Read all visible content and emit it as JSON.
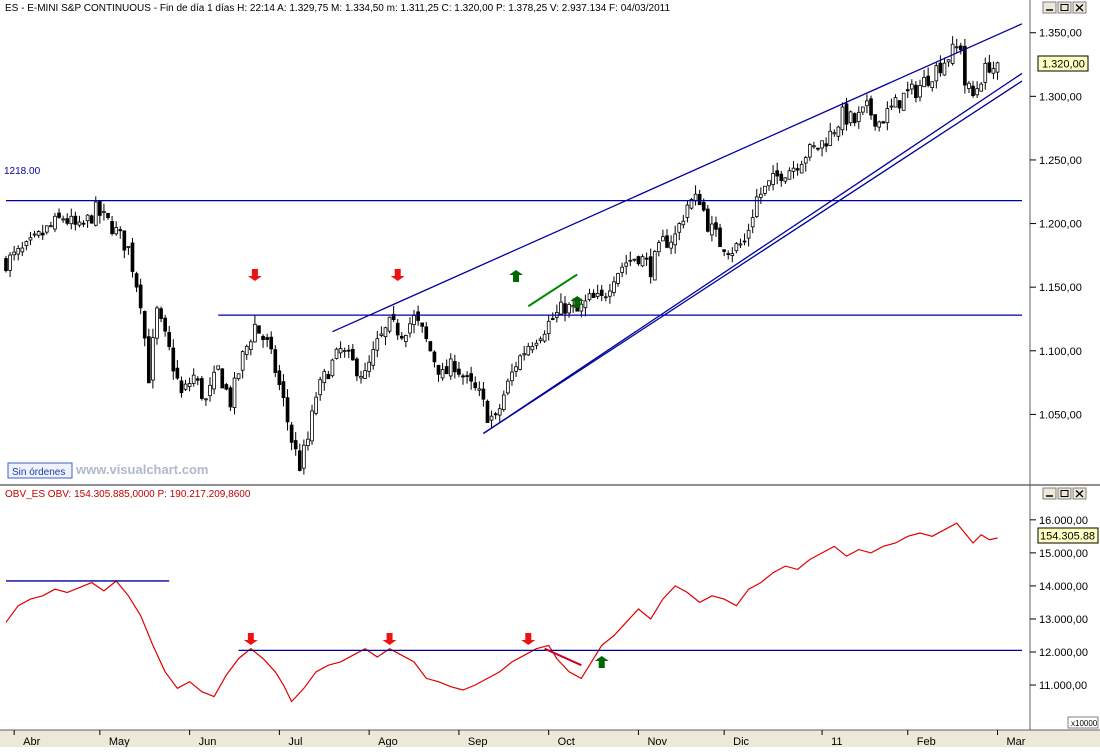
{
  "panels": {
    "price": {
      "header": "ES - E-MINI S&P CONTINUOUS - Fin de día 1 días H: 22:14 A: 1.329,75 M: 1.334,50 m: 1.311,25 C: 1.320,00 P: 1.378,25 V: 2.937.134 F: 04/03/2011",
      "orders_badge": "Sin órdenes",
      "watermark": "www.visualchart.com",
      "level_label": "1218.00",
      "current_value_label": "1.320,00"
    },
    "obv": {
      "header": "OBV_ES  OBV: 154.305.885,0000   P: 190.217.209,8600",
      "current_value_label": "154.305.88",
      "scale_note": "x10000"
    }
  },
  "colors": {
    "candle": "#000000",
    "trend_line": "#0000a0",
    "obv_line": "#e00000",
    "down_arrow": "#ee1111",
    "up_arrow": "#006600",
    "green_trend": "#008800",
    "red_trend": "#cc0022",
    "value_box": "#ffffc0"
  },
  "icons": {
    "window_buttons": [
      "minimize-icon",
      "restore-icon",
      "close-icon"
    ],
    "signals": [
      "down-arrow-icon",
      "up-arrow-icon"
    ]
  },
  "chart_data": [
    {
      "type": "candlestick",
      "title": "ES - E-MINI S&P CONTINUOUS",
      "x_tick_labels": [
        "Abr",
        "May",
        "Jun",
        "Jul",
        "Ago",
        "Sep",
        "Oct",
        "Nov",
        "Dic",
        "11",
        "Feb",
        "Mar"
      ],
      "y_tick_labels": [
        "1.050,00",
        "1.100,00",
        "1.150,00",
        "1.200,00",
        "1.250,00",
        "1.300,00",
        "1.350,00"
      ],
      "y_ticks": [
        1050,
        1100,
        1150,
        1200,
        1250,
        1300,
        1350
      ],
      "ylim": [
        1000,
        1360
      ],
      "horizontal_levels": [
        1218,
        1128
      ],
      "close_path": [
        [
          0,
          1170
        ],
        [
          5,
          1180
        ],
        [
          10,
          1195
        ],
        [
          14,
          1205
        ],
        [
          18,
          1195
        ],
        [
          22,
          1210
        ],
        [
          26,
          1198
        ],
        [
          30,
          1180
        ],
        [
          33,
          1140
        ],
        [
          35,
          1080
        ],
        [
          37,
          1130
        ],
        [
          40,
          1100
        ],
        [
          43,
          1065
        ],
        [
          46,
          1080
        ],
        [
          49,
          1060
        ],
        [
          52,
          1085
        ],
        [
          55,
          1060
        ],
        [
          58,
          1095
        ],
        [
          61,
          1120
        ],
        [
          64,
          1105
        ],
        [
          66,
          1085
        ],
        [
          68,
          1060
        ],
        [
          70,
          1030
        ],
        [
          72,
          1010
        ],
        [
          74,
          1030
        ],
        [
          76,
          1065
        ],
        [
          79,
          1085
        ],
        [
          82,
          1100
        ],
        [
          85,
          1090
        ],
        [
          88,
          1080
        ],
        [
          91,
          1105
        ],
        [
          94,
          1120
        ],
        [
          97,
          1115
        ],
        [
          100,
          1125
        ],
        [
          102,
          1115
        ],
        [
          104,
          1100
        ],
        [
          107,
          1080
        ],
        [
          110,
          1090
        ],
        [
          113,
          1075
        ],
        [
          116,
          1065
        ],
        [
          118,
          1050
        ],
        [
          120,
          1045
        ],
        [
          122,
          1065
        ],
        [
          125,
          1090
        ],
        [
          128,
          1105
        ],
        [
          131,
          1115
        ],
        [
          134,
          1125
        ],
        [
          137,
          1135
        ],
        [
          140,
          1130
        ],
        [
          143,
          1140
        ],
        [
          146,
          1140
        ],
        [
          149,
          1160
        ],
        [
          152,
          1170
        ],
        [
          155,
          1175
        ],
        [
          158,
          1165
        ],
        [
          161,
          1185
        ],
        [
          164,
          1190
        ],
        [
          167,
          1215
        ],
        [
          170,
          1220
        ],
        [
          172,
          1200
        ],
        [
          175,
          1185
        ],
        [
          178,
          1180
        ],
        [
          181,
          1185
        ],
        [
          184,
          1220
        ],
        [
          187,
          1230
        ],
        [
          190,
          1240
        ],
        [
          193,
          1245
        ],
        [
          196,
          1255
        ],
        [
          199,
          1260
        ],
        [
          202,
          1270
        ],
        [
          205,
          1285
        ],
        [
          208,
          1280
        ],
        [
          211,
          1290
        ],
        [
          214,
          1280
        ],
        [
          217,
          1290
        ],
        [
          220,
          1300
        ],
        [
          223,
          1305
        ],
        [
          226,
          1315
        ],
        [
          229,
          1325
        ],
        [
          232,
          1335
        ],
        [
          234,
          1340
        ],
        [
          235,
          1310
        ],
        [
          237,
          1300
        ],
        [
          239,
          1315
        ],
        [
          241,
          1325
        ],
        [
          243,
          1320
        ]
      ],
      "trend_lines": [
        {
          "from": [
            80,
            1115
          ],
          "to": [
            249,
            1357
          ]
        },
        {
          "from": [
            117,
            1035
          ],
          "to": [
            249,
            1318
          ]
        },
        {
          "from": [
            117,
            1035
          ],
          "to": [
            249,
            1312
          ]
        },
        {
          "from": [
            0,
            1218
          ],
          "to": [
            249,
            1218
          ]
        },
        {
          "from": [
            52,
            1128
          ],
          "to": [
            249,
            1128
          ]
        }
      ],
      "green_segment": {
        "from": [
          128,
          1135
        ],
        "to": [
          140,
          1160
        ]
      },
      "down_arrows": [
        61,
        96
      ],
      "up_arrows": [
        125,
        140
      ],
      "last_value": 1320
    },
    {
      "type": "line",
      "title": "OBV_ES",
      "series": [
        {
          "values": [
            [
              0,
              12.9
            ],
            [
              3,
              13.4
            ],
            [
              6,
              13.6
            ],
            [
              9,
              13.7
            ],
            [
              12,
              13.9
            ],
            [
              15,
              13.8
            ],
            [
              18,
              13.95
            ],
            [
              21,
              14.1
            ],
            [
              24,
              13.85
            ],
            [
              27,
              14.15
            ],
            [
              30,
              13.7
            ],
            [
              33,
              13.1
            ],
            [
              36,
              12.2
            ],
            [
              39,
              11.4
            ],
            [
              42,
              10.9
            ],
            [
              45,
              11.1
            ],
            [
              48,
              10.8
            ],
            [
              51,
              10.65
            ],
            [
              54,
              11.3
            ],
            [
              57,
              11.8
            ],
            [
              60,
              12.1
            ],
            [
              63,
              11.8
            ],
            [
              66,
              11.4
            ],
            [
              68,
              11.0
            ],
            [
              70,
              10.5
            ],
            [
              73,
              10.9
            ],
            [
              76,
              11.4
            ],
            [
              79,
              11.6
            ],
            [
              82,
              11.7
            ],
            [
              85,
              11.9
            ],
            [
              88,
              12.1
            ],
            [
              91,
              11.85
            ],
            [
              94,
              12.1
            ],
            [
              97,
              11.9
            ],
            [
              100,
              11.7
            ],
            [
              103,
              11.2
            ],
            [
              106,
              11.1
            ],
            [
              109,
              10.95
            ],
            [
              112,
              10.85
            ],
            [
              115,
              11.0
            ],
            [
              118,
              11.2
            ],
            [
              121,
              11.4
            ],
            [
              124,
              11.7
            ],
            [
              127,
              11.9
            ],
            [
              130,
              12.1
            ],
            [
              133,
              12.2
            ],
            [
              135,
              11.8
            ],
            [
              138,
              11.4
            ],
            [
              141,
              11.2
            ],
            [
              143,
              11.6
            ],
            [
              146,
              12.2
            ],
            [
              149,
              12.5
            ],
            [
              152,
              12.9
            ],
            [
              155,
              13.3
            ],
            [
              158,
              13.0
            ],
            [
              161,
              13.6
            ],
            [
              164,
              14.0
            ],
            [
              167,
              13.8
            ],
            [
              170,
              13.5
            ],
            [
              173,
              13.7
            ],
            [
              176,
              13.6
            ],
            [
              179,
              13.4
            ],
            [
              182,
              13.9
            ],
            [
              185,
              14.1
            ],
            [
              188,
              14.4
            ],
            [
              191,
              14.6
            ],
            [
              194,
              14.5
            ],
            [
              197,
              14.8
            ],
            [
              200,
              15.0
            ],
            [
              203,
              15.2
            ],
            [
              206,
              14.9
            ],
            [
              209,
              15.1
            ],
            [
              212,
              15.0
            ],
            [
              215,
              15.2
            ],
            [
              218,
              15.3
            ],
            [
              221,
              15.5
            ],
            [
              224,
              15.6
            ],
            [
              227,
              15.5
            ],
            [
              230,
              15.7
            ],
            [
              233,
              15.9
            ],
            [
              235,
              15.6
            ],
            [
              237,
              15.3
            ],
            [
              239,
              15.55
            ],
            [
              241,
              15.4
            ],
            [
              243,
              15.45
            ]
          ]
        }
      ],
      "y_tick_labels": [
        "11.000,00",
        "12.000,00",
        "13.000,00",
        "14.000,00",
        "15.000,00",
        "16.000,00"
      ],
      "y_ticks": [
        11,
        12,
        13,
        14,
        15,
        16
      ],
      "ylim": [
        9.7,
        16.6
      ],
      "horizontal_levels": [
        {
          "y": 14.15,
          "from": 0,
          "to": 40
        },
        {
          "y": 12.05,
          "from": 57,
          "to": 249
        }
      ],
      "red_segment": {
        "from": [
          132,
          12.1
        ],
        "to": [
          141,
          11.6
        ]
      },
      "down_arrows": [
        60,
        94,
        128
      ],
      "up_arrows": [
        146
      ],
      "last_value_label": "154.305.88"
    }
  ]
}
